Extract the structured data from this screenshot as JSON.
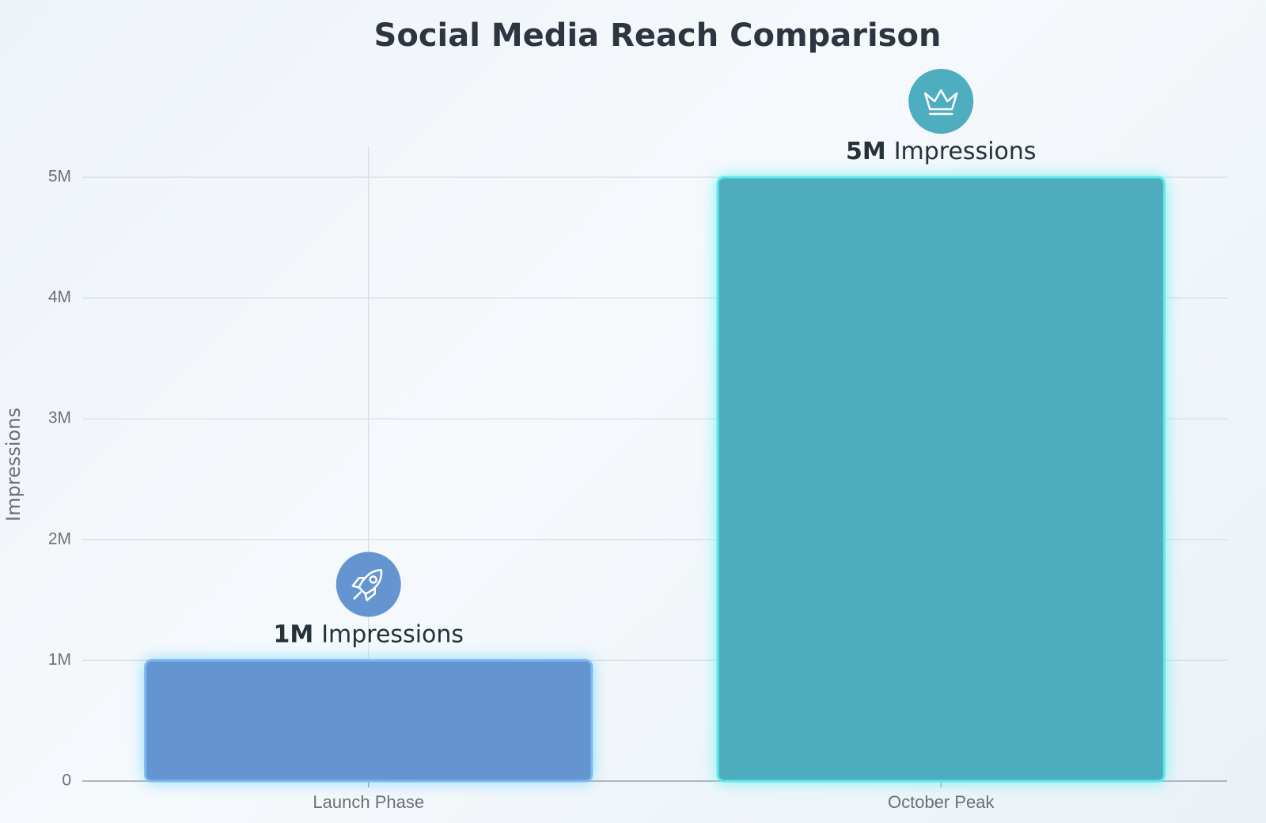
{
  "chart_data": {
    "type": "bar",
    "title": "Social Media Reach Comparison",
    "y_label": "Impressions",
    "categories": [
      "Launch Phase",
      "October Peak"
    ],
    "values": [
      1000000,
      5000000
    ],
    "value_labels": [
      "1M",
      "5M"
    ],
    "value_label_unit": "Impressions",
    "colors": [
      "#6595d0",
      "#4eadbe"
    ],
    "ylim": [
      0,
      5000000
    ],
    "yticks": [
      {
        "value": 0,
        "label": "0"
      },
      {
        "value": 1000000,
        "label": "1M"
      },
      {
        "value": 2000000,
        "label": "2M"
      },
      {
        "value": 3000000,
        "label": "3M"
      },
      {
        "value": 4000000,
        "label": "4M"
      },
      {
        "value": 5000000,
        "label": "5M"
      }
    ],
    "grid": true
  }
}
